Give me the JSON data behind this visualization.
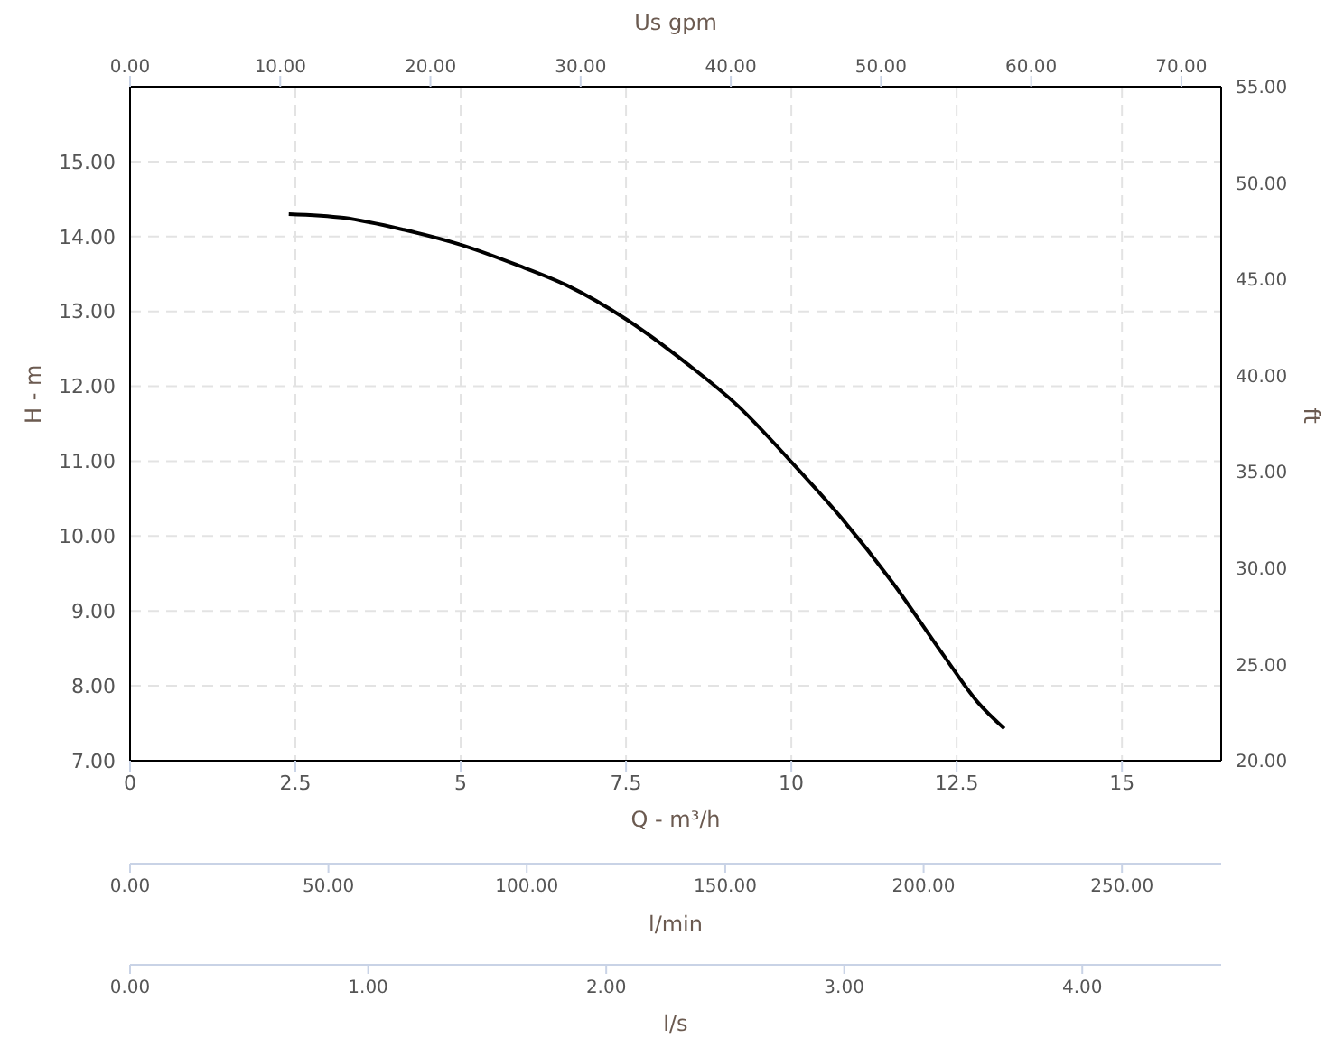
{
  "chart_data": {
    "type": "line",
    "xlabel": "Q - m³/h",
    "ylabel": "H - m",
    "y2label": "ft",
    "x2label": "Us gpm",
    "xlim": [
      0,
      16.5
    ],
    "xticks": [
      0,
      2.5,
      5,
      7.5,
      10,
      12.5,
      15
    ],
    "ylim": [
      7,
      16
    ],
    "yticks": [
      {
        "value": 7,
        "label": "7.00"
      },
      {
        "value": 8,
        "label": "8.00"
      },
      {
        "value": 9,
        "label": "9.00"
      },
      {
        "value": 10,
        "label": "10.00"
      },
      {
        "value": 11,
        "label": "11.00"
      },
      {
        "value": 12,
        "label": "12.00"
      },
      {
        "value": 13,
        "label": "13.00"
      },
      {
        "value": 14,
        "label": "14.00"
      },
      {
        "value": 15,
        "label": "15.00"
      }
    ],
    "y2lim": [
      20,
      55
    ],
    "y2ticks": [
      {
        "value": 20,
        "label": "20.00"
      },
      {
        "value": 25,
        "label": "25.00"
      },
      {
        "value": 30,
        "label": "30.00"
      },
      {
        "value": 35,
        "label": "35.00"
      },
      {
        "value": 40,
        "label": "40.00"
      },
      {
        "value": 45,
        "label": "45.00"
      },
      {
        "value": 50,
        "label": "50.00"
      },
      {
        "value": 55,
        "label": "55.00"
      }
    ],
    "x2lim": [
      0,
      72.65
    ],
    "x2ticks": [
      {
        "value": 0,
        "label": "0.00"
      },
      {
        "value": 10,
        "label": "10.00"
      },
      {
        "value": 20,
        "label": "20.00"
      },
      {
        "value": 30,
        "label": "30.00"
      },
      {
        "value": 40,
        "label": "40.00"
      },
      {
        "value": 50,
        "label": "50.00"
      },
      {
        "value": 60,
        "label": "60.00"
      },
      {
        "value": 70,
        "label": "70.00"
      }
    ],
    "annotations": [
      "0.00",
      "50.00",
      "100.00",
      "150.00",
      "200.00",
      "250.00",
      "l/min",
      "0.00",
      "1.00",
      "2.00",
      "3.00",
      "4.00",
      "l/s"
    ],
    "grid": true,
    "marker": "none",
    "line_style": "solid",
    "series": [
      {
        "color": "#000000",
        "x": [
          2.4,
          3.23,
          4.14,
          5.0,
          5.82,
          6.6,
          7.51,
          8.41,
          9.19,
          10.0,
          10.75,
          11.53,
          12.3,
          12.82,
          13.22
        ],
        "values": [
          14.3,
          14.25,
          14.09,
          13.89,
          13.63,
          13.35,
          12.89,
          12.31,
          11.74,
          10.99,
          10.25,
          9.38,
          8.41,
          7.78,
          7.43
        ]
      }
    ]
  }
}
